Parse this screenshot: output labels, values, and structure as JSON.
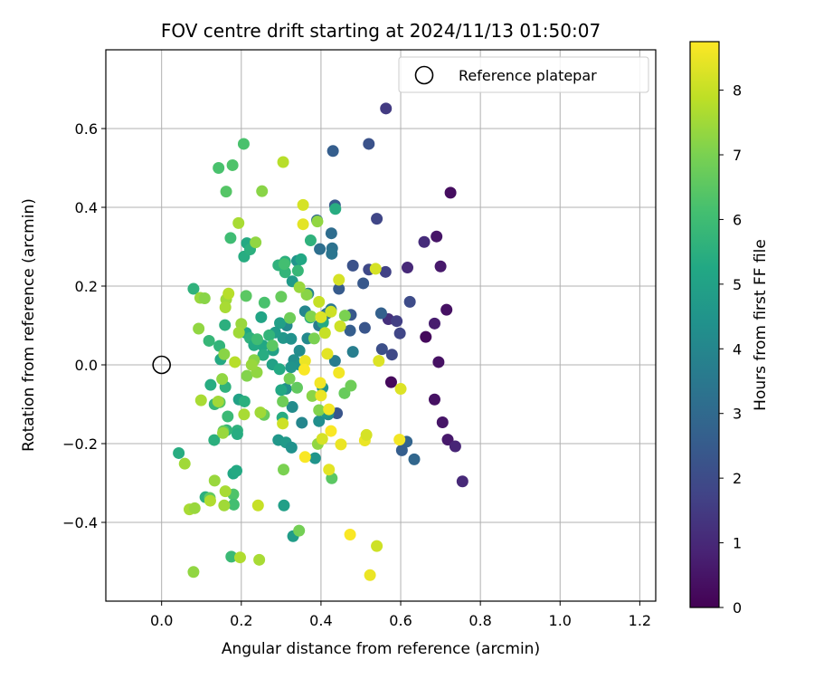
{
  "chart_data": {
    "type": "scatter",
    "title": "FOV centre drift starting at 2024/11/13 01:50:07",
    "xlabel": "Angular distance from reference (arcmin)",
    "ylabel": "Rotation from reference (arcmin)",
    "xlim": [
      -0.14,
      1.24
    ],
    "ylim": [
      -0.6,
      0.8
    ],
    "xticks": [
      0.0,
      0.2,
      0.4,
      0.6,
      0.8,
      1.0,
      1.2
    ],
    "xtick_labels": [
      "0.0",
      "0.2",
      "0.4",
      "0.6",
      "0.8",
      "1.0",
      "1.2"
    ],
    "yticks": [
      -0.4,
      -0.2,
      0.0,
      0.2,
      0.4,
      0.6
    ],
    "ytick_labels": [
      "−0.4",
      "−0.2",
      "0.0",
      "0.2",
      "0.4",
      "0.6"
    ],
    "grid": true,
    "legend": {
      "position": "top-right",
      "entries": [
        "Reference platepar"
      ]
    },
    "reference_point": {
      "x": 0.0,
      "y": 0.0,
      "label": "Reference platepar"
    },
    "colorbar": {
      "label": "Hours from first FF file",
      "colormap": "viridis",
      "range": [
        0,
        8.75
      ],
      "ticks": [
        0,
        1,
        2,
        3,
        4,
        5,
        6,
        7,
        8
      ],
      "tick_labels": [
        "0",
        "1",
        "2",
        "3",
        "4",
        "5",
        "6",
        "7",
        "8"
      ]
    },
    "points": [
      {
        "x": 0.725,
        "y": 0.437,
        "h": 0.3
      },
      {
        "x": 0.69,
        "y": 0.326,
        "h": 0.5
      },
      {
        "x": 0.715,
        "y": 0.14,
        "h": 0.4
      },
      {
        "x": 0.7,
        "y": 0.25,
        "h": 0.6
      },
      {
        "x": 0.685,
        "y": 0.105,
        "h": 0.7
      },
      {
        "x": 0.695,
        "y": 0.007,
        "h": 0.4
      },
      {
        "x": 0.663,
        "y": 0.071,
        "h": 0.2
      },
      {
        "x": 0.685,
        "y": -0.088,
        "h": 0.4
      },
      {
        "x": 0.705,
        "y": -0.146,
        "h": 0.5
      },
      {
        "x": 0.718,
        "y": -0.19,
        "h": 0.6
      },
      {
        "x": 0.737,
        "y": -0.207,
        "h": 0.9
      },
      {
        "x": 0.755,
        "y": -0.296,
        "h": 1.0
      },
      {
        "x": 0.576,
        "y": -0.044,
        "h": 0.2
      },
      {
        "x": 0.563,
        "y": 0.651,
        "h": 1.5
      },
      {
        "x": 0.659,
        "y": 0.312,
        "h": 1.1
      },
      {
        "x": 0.617,
        "y": 0.247,
        "h": 1.0
      },
      {
        "x": 0.569,
        "y": 0.116,
        "h": 1.2
      },
      {
        "x": 0.54,
        "y": 0.371,
        "h": 1.8
      },
      {
        "x": 0.52,
        "y": 0.242,
        "h": 1.9
      },
      {
        "x": 0.52,
        "y": 0.561,
        "h": 2.2
      },
      {
        "x": 0.562,
        "y": 0.236,
        "h": 1.7
      },
      {
        "x": 0.59,
        "y": 0.111,
        "h": 1.6
      },
      {
        "x": 0.598,
        "y": 0.08,
        "h": 1.8
      },
      {
        "x": 0.578,
        "y": 0.026,
        "h": 1.9
      },
      {
        "x": 0.553,
        "y": 0.04,
        "h": 2.1
      },
      {
        "x": 0.623,
        "y": 0.16,
        "h": 2.0
      },
      {
        "x": 0.48,
        "y": 0.252,
        "h": 2.2
      },
      {
        "x": 0.506,
        "y": 0.207,
        "h": 2.4
      },
      {
        "x": 0.445,
        "y": 0.193,
        "h": 2.5
      },
      {
        "x": 0.473,
        "y": 0.087,
        "h": 2.6
      },
      {
        "x": 0.51,
        "y": 0.094,
        "h": 2.3
      },
      {
        "x": 0.475,
        "y": 0.127,
        "h": 2.4
      },
      {
        "x": 0.551,
        "y": 0.131,
        "h": 2.7
      },
      {
        "x": 0.435,
        "y": 0.405,
        "h": 2.5
      },
      {
        "x": 0.43,
        "y": 0.543,
        "h": 2.6
      },
      {
        "x": 0.44,
        "y": -0.123,
        "h": 2.3
      },
      {
        "x": 0.615,
        "y": -0.195,
        "h": 2.8
      },
      {
        "x": 0.603,
        "y": -0.217,
        "h": 2.6
      },
      {
        "x": 0.634,
        "y": -0.24,
        "h": 2.9
      },
      {
        "x": 0.39,
        "y": 0.367,
        "h": 3.0
      },
      {
        "x": 0.397,
        "y": 0.294,
        "h": 3.2
      },
      {
        "x": 0.428,
        "y": 0.296,
        "h": 3.3
      },
      {
        "x": 0.427,
        "y": 0.282,
        "h": 3.4
      },
      {
        "x": 0.426,
        "y": 0.334,
        "h": 3.1
      },
      {
        "x": 0.435,
        "y": 0.01,
        "h": 3.6
      },
      {
        "x": 0.48,
        "y": 0.033,
        "h": 3.7
      },
      {
        "x": 0.414,
        "y": 0.13,
        "h": 3.4
      },
      {
        "x": 0.425,
        "y": 0.141,
        "h": 3.5
      },
      {
        "x": 0.405,
        "y": 0.109,
        "h": 3.8
      },
      {
        "x": 0.395,
        "y": 0.1,
        "h": 3.6
      },
      {
        "x": 0.368,
        "y": 0.181,
        "h": 3.9
      },
      {
        "x": 0.36,
        "y": 0.136,
        "h": 4.0
      },
      {
        "x": 0.366,
        "y": 0.067,
        "h": 4.1
      },
      {
        "x": 0.346,
        "y": 0.036,
        "h": 4.2
      },
      {
        "x": 0.332,
        "y": 0.012,
        "h": 4.3
      },
      {
        "x": 0.347,
        "y": 0.0,
        "h": 4.4
      },
      {
        "x": 0.325,
        "y": -0.006,
        "h": 4.5
      },
      {
        "x": 0.328,
        "y": -0.107,
        "h": 4.2
      },
      {
        "x": 0.352,
        "y": -0.147,
        "h": 4.0
      },
      {
        "x": 0.312,
        "y": -0.061,
        "h": 4.3
      },
      {
        "x": 0.305,
        "y": 0.068,
        "h": 4.6
      },
      {
        "x": 0.325,
        "y": 0.066,
        "h": 4.4
      },
      {
        "x": 0.314,
        "y": 0.1,
        "h": 4.1
      },
      {
        "x": 0.34,
        "y": 0.264,
        "h": 4.5
      },
      {
        "x": 0.328,
        "y": 0.212,
        "h": 4.7
      },
      {
        "x": 0.297,
        "y": 0.106,
        "h": 4.9
      },
      {
        "x": 0.285,
        "y": 0.082,
        "h": 4.8
      },
      {
        "x": 0.28,
        "y": 0.037,
        "h": 5.0
      },
      {
        "x": 0.293,
        "y": -0.191,
        "h": 4.6
      },
      {
        "x": 0.312,
        "y": -0.197,
        "h": 4.7
      },
      {
        "x": 0.326,
        "y": -0.21,
        "h": 4.4
      },
      {
        "x": 0.385,
        "y": -0.237,
        "h": 4.5
      },
      {
        "x": 0.33,
        "y": -0.435,
        "h": 4.8
      },
      {
        "x": 0.307,
        "y": -0.357,
        "h": 4.9
      },
      {
        "x": 0.418,
        "y": -0.126,
        "h": 4.2
      },
      {
        "x": 0.404,
        "y": -0.058,
        "h": 4.5
      },
      {
        "x": 0.413,
        "y": -0.12,
        "h": 4.6
      },
      {
        "x": 0.395,
        "y": -0.143,
        "h": 4.3
      },
      {
        "x": 0.25,
        "y": 0.121,
        "h": 5.1
      },
      {
        "x": 0.254,
        "y": 0.049,
        "h": 5.2
      },
      {
        "x": 0.278,
        "y": 0.001,
        "h": 5.0
      },
      {
        "x": 0.296,
        "y": -0.011,
        "h": 5.3
      },
      {
        "x": 0.3,
        "y": -0.064,
        "h": 5.2
      },
      {
        "x": 0.303,
        "y": -0.134,
        "h": 5.4
      },
      {
        "x": 0.31,
        "y": 0.262,
        "h": 5.5
      },
      {
        "x": 0.293,
        "y": 0.253,
        "h": 5.6
      },
      {
        "x": 0.31,
        "y": 0.235,
        "h": 5.7
      },
      {
        "x": 0.374,
        "y": 0.316,
        "h": 5.6
      },
      {
        "x": 0.436,
        "y": 0.396,
        "h": 5.4
      },
      {
        "x": 0.405,
        "y": 0.107,
        "h": 5.3
      },
      {
        "x": 0.373,
        "y": 0.12,
        "h": 5.5
      },
      {
        "x": 0.342,
        "y": 0.239,
        "h": 5.8
      },
      {
        "x": 0.35,
        "y": 0.268,
        "h": 5.2
      },
      {
        "x": 0.214,
        "y": 0.309,
        "h": 5.3
      },
      {
        "x": 0.207,
        "y": 0.275,
        "h": 5.4
      },
      {
        "x": 0.222,
        "y": 0.293,
        "h": 5.5
      },
      {
        "x": 0.212,
        "y": 0.081,
        "h": 5.2
      },
      {
        "x": 0.222,
        "y": 0.068,
        "h": 5.6
      },
      {
        "x": 0.232,
        "y": 0.05,
        "h": 5.3
      },
      {
        "x": 0.255,
        "y": 0.025,
        "h": 5.4
      },
      {
        "x": 0.27,
        "y": 0.075,
        "h": 5.7
      },
      {
        "x": 0.194,
        "y": -0.088,
        "h": 5.0
      },
      {
        "x": 0.208,
        "y": -0.093,
        "h": 5.5
      },
      {
        "x": 0.19,
        "y": -0.167,
        "h": 5.6
      },
      {
        "x": 0.19,
        "y": -0.176,
        "h": 5.4
      },
      {
        "x": 0.145,
        "y": 0.048,
        "h": 5.7
      },
      {
        "x": 0.159,
        "y": 0.101,
        "h": 5.5
      },
      {
        "x": 0.148,
        "y": 0.014,
        "h": 5.3
      },
      {
        "x": 0.123,
        "y": -0.051,
        "h": 5.4
      },
      {
        "x": 0.133,
        "y": -0.1,
        "h": 5.8
      },
      {
        "x": 0.16,
        "y": -0.056,
        "h": 5.6
      },
      {
        "x": 0.166,
        "y": -0.131,
        "h": 5.9
      },
      {
        "x": 0.163,
        "y": -0.166,
        "h": 5.7
      },
      {
        "x": 0.132,
        "y": -0.191,
        "h": 5.5
      },
      {
        "x": 0.18,
        "y": -0.276,
        "h": 5.2
      },
      {
        "x": 0.188,
        "y": -0.269,
        "h": 5.3
      },
      {
        "x": 0.043,
        "y": -0.224,
        "h": 5.4
      },
      {
        "x": 0.08,
        "y": 0.193,
        "h": 5.6
      },
      {
        "x": 0.119,
        "y": 0.061,
        "h": 5.8
      },
      {
        "x": 0.11,
        "y": -0.336,
        "h": 5.5
      },
      {
        "x": 0.175,
        "y": -0.487,
        "h": 5.9
      },
      {
        "x": 0.24,
        "y": 0.065,
        "h": 6.0
      },
      {
        "x": 0.308,
        "y": 0.256,
        "h": 6.1
      },
      {
        "x": 0.206,
        "y": 0.561,
        "h": 6.2
      },
      {
        "x": 0.173,
        "y": 0.322,
        "h": 6.0
      },
      {
        "x": 0.178,
        "y": 0.507,
        "h": 6.3
      },
      {
        "x": 0.143,
        "y": 0.5,
        "h": 6.2
      },
      {
        "x": 0.162,
        "y": 0.44,
        "h": 6.4
      },
      {
        "x": 0.258,
        "y": 0.158,
        "h": 6.2
      },
      {
        "x": 0.18,
        "y": -0.329,
        "h": 6.3
      },
      {
        "x": 0.146,
        "y": -0.095,
        "h": 6.4
      },
      {
        "x": 0.181,
        "y": -0.355,
        "h": 6.1
      },
      {
        "x": 0.121,
        "y": -0.338,
        "h": 6.6
      },
      {
        "x": 0.155,
        "y": -0.168,
        "h": 6.6
      },
      {
        "x": 0.212,
        "y": 0.175,
        "h": 6.5
      },
      {
        "x": 0.257,
        "y": -0.127,
        "h": 6.7
      },
      {
        "x": 0.278,
        "y": 0.049,
        "h": 6.5
      },
      {
        "x": 0.3,
        "y": 0.173,
        "h": 6.7
      },
      {
        "x": 0.322,
        "y": 0.119,
        "h": 6.8
      },
      {
        "x": 0.34,
        "y": -0.058,
        "h": 6.6
      },
      {
        "x": 0.321,
        "y": -0.035,
        "h": 6.9
      },
      {
        "x": 0.304,
        "y": -0.093,
        "h": 6.8
      },
      {
        "x": 0.306,
        "y": -0.266,
        "h": 7.0
      },
      {
        "x": 0.345,
        "y": -0.421,
        "h": 6.9
      },
      {
        "x": 0.427,
        "y": -0.288,
        "h": 6.5
      },
      {
        "x": 0.459,
        "y": -0.072,
        "h": 6.7
      },
      {
        "x": 0.475,
        "y": -0.053,
        "h": 6.8
      },
      {
        "x": 0.383,
        "y": 0.067,
        "h": 7.0
      },
      {
        "x": 0.395,
        "y": -0.115,
        "h": 7.1
      },
      {
        "x": 0.378,
        "y": -0.079,
        "h": 7.2
      },
      {
        "x": 0.392,
        "y": -0.201,
        "h": 7.3
      },
      {
        "x": 0.46,
        "y": 0.125,
        "h": 7.0
      },
      {
        "x": 0.375,
        "y": 0.123,
        "h": 7.1
      },
      {
        "x": 0.364,
        "y": 0.178,
        "h": 7.2
      },
      {
        "x": 0.346,
        "y": 0.197,
        "h": 7.4
      },
      {
        "x": 0.391,
        "y": 0.364,
        "h": 7.3
      },
      {
        "x": 0.252,
        "y": 0.441,
        "h": 7.2
      },
      {
        "x": 0.236,
        "y": 0.311,
        "h": 7.3
      },
      {
        "x": 0.2,
        "y": 0.104,
        "h": 7.4
      },
      {
        "x": 0.214,
        "y": -0.028,
        "h": 7.1
      },
      {
        "x": 0.232,
        "y": 0.012,
        "h": 7.2
      },
      {
        "x": 0.239,
        "y": -0.019,
        "h": 7.3
      },
      {
        "x": 0.248,
        "y": -0.121,
        "h": 7.5
      },
      {
        "x": 0.226,
        "y": 0.0,
        "h": 7.4
      },
      {
        "x": 0.207,
        "y": -0.126,
        "h": 7.6
      },
      {
        "x": 0.157,
        "y": 0.027,
        "h": 7.2
      },
      {
        "x": 0.152,
        "y": -0.036,
        "h": 7.3
      },
      {
        "x": 0.154,
        "y": -0.173,
        "h": 7.4
      },
      {
        "x": 0.142,
        "y": -0.093,
        "h": 7.5
      },
      {
        "x": 0.099,
        "y": -0.09,
        "h": 7.6
      },
      {
        "x": 0.093,
        "y": 0.092,
        "h": 7.3
      },
      {
        "x": 0.097,
        "y": 0.17,
        "h": 7.4
      },
      {
        "x": 0.108,
        "y": 0.169,
        "h": 7.2
      },
      {
        "x": 0.162,
        "y": 0.166,
        "h": 7.5
      },
      {
        "x": 0.16,
        "y": 0.146,
        "h": 7.6
      },
      {
        "x": 0.168,
        "y": 0.181,
        "h": 7.8
      },
      {
        "x": 0.193,
        "y": 0.36,
        "h": 7.6
      },
      {
        "x": 0.194,
        "y": 0.082,
        "h": 7.5
      },
      {
        "x": 0.184,
        "y": 0.007,
        "h": 7.8
      },
      {
        "x": 0.133,
        "y": -0.294,
        "h": 7.4
      },
      {
        "x": 0.16,
        "y": -0.321,
        "h": 7.6
      },
      {
        "x": 0.157,
        "y": -0.357,
        "h": 7.5
      },
      {
        "x": 0.122,
        "y": -0.345,
        "h": 7.7
      },
      {
        "x": 0.07,
        "y": -0.367,
        "h": 7.6
      },
      {
        "x": 0.083,
        "y": -0.364,
        "h": 7.4
      },
      {
        "x": 0.058,
        "y": -0.251,
        "h": 7.5
      },
      {
        "x": 0.08,
        "y": -0.526,
        "h": 7.3
      },
      {
        "x": 0.197,
        "y": -0.489,
        "h": 7.7
      },
      {
        "x": 0.245,
        "y": -0.495,
        "h": 7.6
      },
      {
        "x": 0.242,
        "y": -0.357,
        "h": 8.0
      },
      {
        "x": 0.304,
        "y": -0.149,
        "h": 8.1
      },
      {
        "x": 0.305,
        "y": 0.515,
        "h": 7.8
      },
      {
        "x": 0.355,
        "y": 0.406,
        "h": 8.2
      },
      {
        "x": 0.355,
        "y": 0.357,
        "h": 8.4
      },
      {
        "x": 0.395,
        "y": 0.16,
        "h": 8.0
      },
      {
        "x": 0.425,
        "y": 0.135,
        "h": 8.1
      },
      {
        "x": 0.445,
        "y": 0.216,
        "h": 8.2
      },
      {
        "x": 0.448,
        "y": 0.098,
        "h": 8.1
      },
      {
        "x": 0.41,
        "y": 0.081,
        "h": 8.0
      },
      {
        "x": 0.4,
        "y": 0.121,
        "h": 8.3
      },
      {
        "x": 0.416,
        "y": 0.028,
        "h": 8.4
      },
      {
        "x": 0.36,
        "y": 0.01,
        "h": 8.5
      },
      {
        "x": 0.358,
        "y": -0.012,
        "h": 8.7
      },
      {
        "x": 0.398,
        "y": -0.046,
        "h": 8.6
      },
      {
        "x": 0.4,
        "y": -0.078,
        "h": 8.5
      },
      {
        "x": 0.42,
        "y": -0.113,
        "h": 8.6
      },
      {
        "x": 0.403,
        "y": -0.188,
        "h": 8.2
      },
      {
        "x": 0.425,
        "y": -0.168,
        "h": 8.7
      },
      {
        "x": 0.45,
        "y": -0.202,
        "h": 8.5
      },
      {
        "x": 0.445,
        "y": -0.02,
        "h": 8.6
      },
      {
        "x": 0.36,
        "y": -0.234,
        "h": 8.7
      },
      {
        "x": 0.42,
        "y": -0.266,
        "h": 8.4
      },
      {
        "x": 0.51,
        "y": -0.192,
        "h": 8.5
      },
      {
        "x": 0.514,
        "y": -0.178,
        "h": 8.2
      },
      {
        "x": 0.545,
        "y": 0.01,
        "h": 8.3
      },
      {
        "x": 0.537,
        "y": 0.244,
        "h": 8.2
      },
      {
        "x": 0.597,
        "y": -0.19,
        "h": 8.6
      },
      {
        "x": 0.6,
        "y": -0.061,
        "h": 8.3
      },
      {
        "x": 0.473,
        "y": -0.431,
        "h": 8.7
      },
      {
        "x": 0.523,
        "y": -0.534,
        "h": 8.5
      },
      {
        "x": 0.54,
        "y": -0.46,
        "h": 8.1
      }
    ]
  }
}
